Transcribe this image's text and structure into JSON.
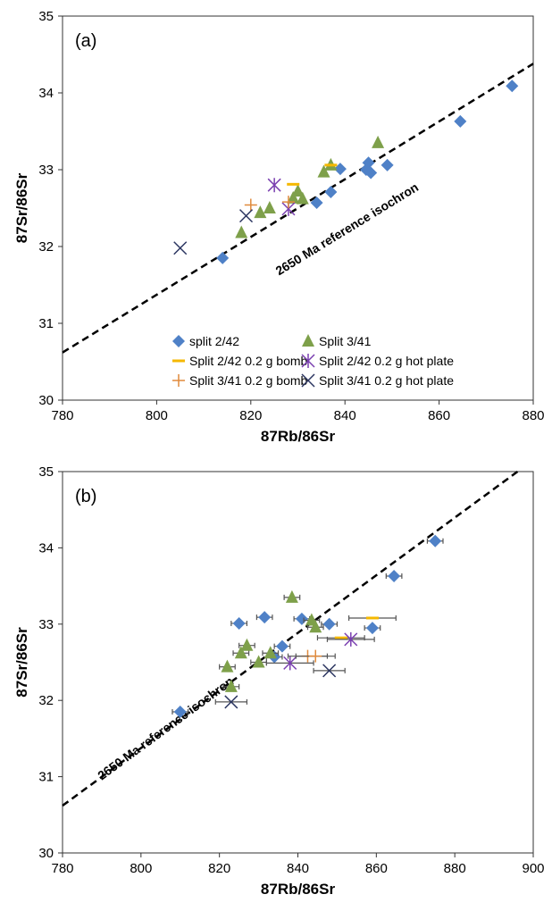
{
  "chart_data": [
    {
      "panel": "(a)",
      "type": "scatter",
      "xlabel": "87Rb/86Sr",
      "ylabel": "87Sr/86Sr",
      "xlim": [
        780,
        880
      ],
      "ylim": [
        30,
        35
      ],
      "xticks": [
        780,
        800,
        820,
        840,
        860,
        880
      ],
      "yticks": [
        30,
        31,
        32,
        33,
        34,
        35
      ],
      "annotation": "2650 Ma reference isochron",
      "isochron": {
        "x": [
          780,
          880
        ],
        "y": [
          30.62,
          34.38
        ]
      },
      "legend": "bottom-center",
      "series": [
        {
          "name": "split 2/42",
          "marker": "diamond",
          "color": "#4f81c7",
          "points": [
            [
              814,
              31.85
            ],
            [
              834,
              32.57
            ],
            [
              837,
              32.71
            ],
            [
              839,
              33.01
            ],
            [
              845,
              33.09
            ],
            [
              845.5,
              32.96
            ],
            [
              844.5,
              33.0
            ],
            [
              849,
              33.06
            ],
            [
              864.5,
              33.63
            ],
            [
              875.5,
              34.09
            ]
          ]
        },
        {
          "name": "Split 3/41",
          "marker": "triangle",
          "color": "#7ea04a",
          "points": [
            [
              818,
              32.18
            ],
            [
              822,
              32.44
            ],
            [
              824,
              32.5
            ],
            [
              829,
              32.63
            ],
            [
              830,
              32.72
            ],
            [
              831,
              32.62
            ],
            [
              835.5,
              32.97
            ],
            [
              837,
              33.06
            ],
            [
              847,
              33.35
            ]
          ]
        },
        {
          "name": "Split 2/42 0.2 g bomb",
          "marker": "dash",
          "color": "#f5b800",
          "points": [
            [
              829,
              32.81
            ],
            [
              837,
              33.06
            ]
          ]
        },
        {
          "name": "Split 2/42 0.2 g hot plate",
          "marker": "star",
          "color": "#7a3fb0",
          "points": [
            [
              825,
              32.8
            ],
            [
              828,
              32.49
            ]
          ]
        },
        {
          "name": "Split 3/41 0.2 g bomb",
          "marker": "plus",
          "color": "#e08a3c",
          "points": [
            [
              820,
              32.54
            ],
            [
              828,
              32.58
            ]
          ]
        },
        {
          "name": "Split 3/41 0.2 g hot plate",
          "marker": "x",
          "color": "#2b3560",
          "points": [
            [
              805,
              31.98
            ],
            [
              819,
              32.4
            ]
          ]
        }
      ]
    },
    {
      "panel": "(b)",
      "type": "scatter",
      "xlabel": "87Rb/86Sr",
      "ylabel": "87Sr/86Sr",
      "xlim": [
        780,
        900
      ],
      "ylim": [
        30,
        35
      ],
      "xticks": [
        780,
        800,
        820,
        840,
        860,
        880,
        900
      ],
      "yticks": [
        30,
        31,
        32,
        33,
        34,
        35
      ],
      "annotation": "2650 Ma reference isochron",
      "isochron": {
        "x": [
          780,
          896
        ],
        "y": [
          30.62,
          35
        ]
      },
      "series": [
        {
          "name": "split 2/42",
          "marker": "diamond",
          "color": "#4f81c7",
          "xerr": 2,
          "points": [
            [
              810,
              31.85
            ],
            [
              825,
              33.01
            ],
            [
              831.5,
              33.09
            ],
            [
              834,
              32.57
            ],
            [
              836,
              32.71
            ],
            [
              841,
              33.07
            ],
            [
              848,
              33.0
            ],
            [
              859,
              32.95
            ],
            [
              864.5,
              33.63
            ],
            [
              875,
              34.09
            ]
          ]
        },
        {
          "name": "Split 3/41",
          "marker": "triangle",
          "color": "#7ea04a",
          "xerr": 2,
          "points": [
            [
              822,
              32.44
            ],
            [
              823,
              32.18
            ],
            [
              825.5,
              32.62
            ],
            [
              827,
              32.72
            ],
            [
              830,
              32.5
            ],
            [
              833,
              32.62
            ],
            [
              838.5,
              33.35
            ],
            [
              843.5,
              33.05
            ],
            [
              844.5,
              32.96
            ]
          ]
        },
        {
          "name": "Split 2/42 0.2 g bomb",
          "marker": "dash",
          "color": "#f5b800",
          "xerr": 6,
          "points": [
            [
              859,
              33.08
            ],
            [
              851,
              32.82
            ]
          ]
        },
        {
          "name": "Split 2/42 0.2 g hot plate",
          "marker": "star",
          "color": "#7a3fb0",
          "xerr": 6,
          "points": [
            [
              838,
              32.49
            ],
            [
              853.5,
              32.8
            ]
          ]
        },
        {
          "name": "Split 3/41 0.2 g bomb",
          "marker": "plus",
          "color": "#e08a3c",
          "xerr": 5,
          "points": [
            [
              842.5,
              32.58
            ],
            [
              844.5,
              32.58
            ]
          ]
        },
        {
          "name": "Split 3/41 0.2 g hot plate",
          "marker": "x",
          "color": "#2b3560",
          "xerr": 4,
          "points": [
            [
              823,
              31.98
            ],
            [
              848,
              32.39
            ]
          ]
        }
      ]
    }
  ]
}
